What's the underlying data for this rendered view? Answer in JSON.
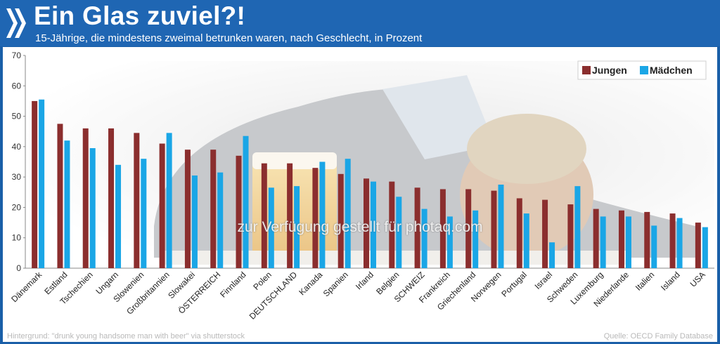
{
  "header": {
    "title": "Ein Glas zuviel?!",
    "subtitle": "15-Jährige, die mindestens zweimal betrunken waren, nach Geschlecht, in Prozent"
  },
  "footer": {
    "background_credit": "Hintergrund: \"drunk young handsome man with beer\" via shutterstock",
    "source": "Quelle: OECD Family Database"
  },
  "watermark": "zur Verfügung gestellt für photaq.com",
  "colors": {
    "header": "#1f66b3",
    "jungen": "#8b2e2e",
    "maedchen": "#1aa6e6"
  },
  "chart_data": {
    "type": "bar",
    "categories": [
      "Dänemark",
      "Estland",
      "Tschechien",
      "Ungarn",
      "Slowenien",
      "Großbritannien",
      "Slowakei",
      "ÖSTERREICH",
      "Finnland",
      "Polen",
      "DEUTSCHLAND",
      "Kanada",
      "Spanien",
      "Irland",
      "Belgien",
      "SCHWEIZ",
      "Frankreich",
      "Griechenland",
      "Norwegen",
      "Portugal",
      "Israel",
      "Schweden",
      "Luxemburg",
      "Niederlande",
      "Italien",
      "Island",
      "USA"
    ],
    "series": [
      {
        "name": "Jungen",
        "values": [
          55,
          47.5,
          46,
          46,
          44.5,
          41,
          39,
          39,
          37,
          34.5,
          34.5,
          33,
          31,
          29.5,
          28.5,
          26.5,
          26,
          26,
          25.5,
          23,
          22.5,
          21,
          19.5,
          19,
          18.5,
          18,
          15
        ]
      },
      {
        "name": "Mädchen",
        "values": [
          55.5,
          42,
          39.5,
          34,
          36,
          44.5,
          30.5,
          31.5,
          43.5,
          26.5,
          27,
          35,
          36,
          28.5,
          23.5,
          19.5,
          17,
          19,
          27.5,
          18,
          8.5,
          27,
          17,
          17,
          14,
          16.5,
          13.5
        ]
      }
    ],
    "ylim": [
      0,
      70
    ],
    "yticks": [
      0,
      10,
      20,
      30,
      40,
      50,
      60,
      70
    ],
    "grid": false,
    "legend_position": "top-right"
  }
}
